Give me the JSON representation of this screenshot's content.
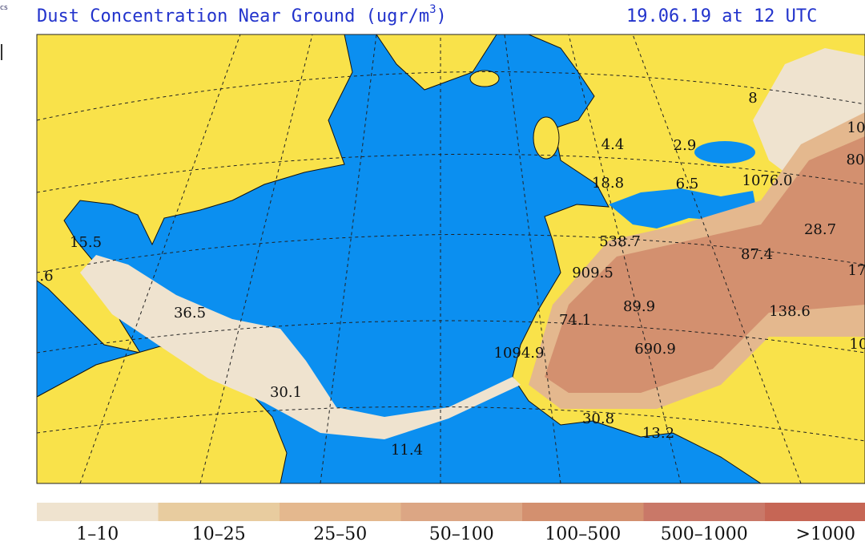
{
  "side_text": "cs",
  "header": {
    "title": "Dust Concentration Near Ground (ugr/m",
    "superscript": "3",
    "title_close": ")",
    "date": "19.06.19 at 12 UTC"
  },
  "map": {
    "labels": [
      "15.5",
      ".6",
      "36.5",
      "30.1",
      "11.4",
      "538.7",
      "909.5",
      "89.9",
      "74.1",
      "1094.9",
      "690.9",
      "138.6",
      "87.4",
      "28.7",
      "30.8",
      "13.2",
      "18.8",
      "4.4",
      "2.9",
      "6.5",
      "1076.0",
      "8",
      "10",
      "80",
      "17",
      "10"
    ]
  },
  "legend": [
    {
      "label": "1–10",
      "color": "#efe3cf"
    },
    {
      "label": "10–25",
      "color": "#e8cc9f"
    },
    {
      "label": "25–50",
      "color": "#e4b88e"
    },
    {
      "label": "50–100",
      "color": "#dca684"
    },
    {
      "label": "100–500",
      "color": "#d3906f"
    },
    {
      "label": "500–1000",
      "color": "#c97868"
    },
    {
      "label": ">1000",
      "color": "#c66655"
    }
  ]
}
